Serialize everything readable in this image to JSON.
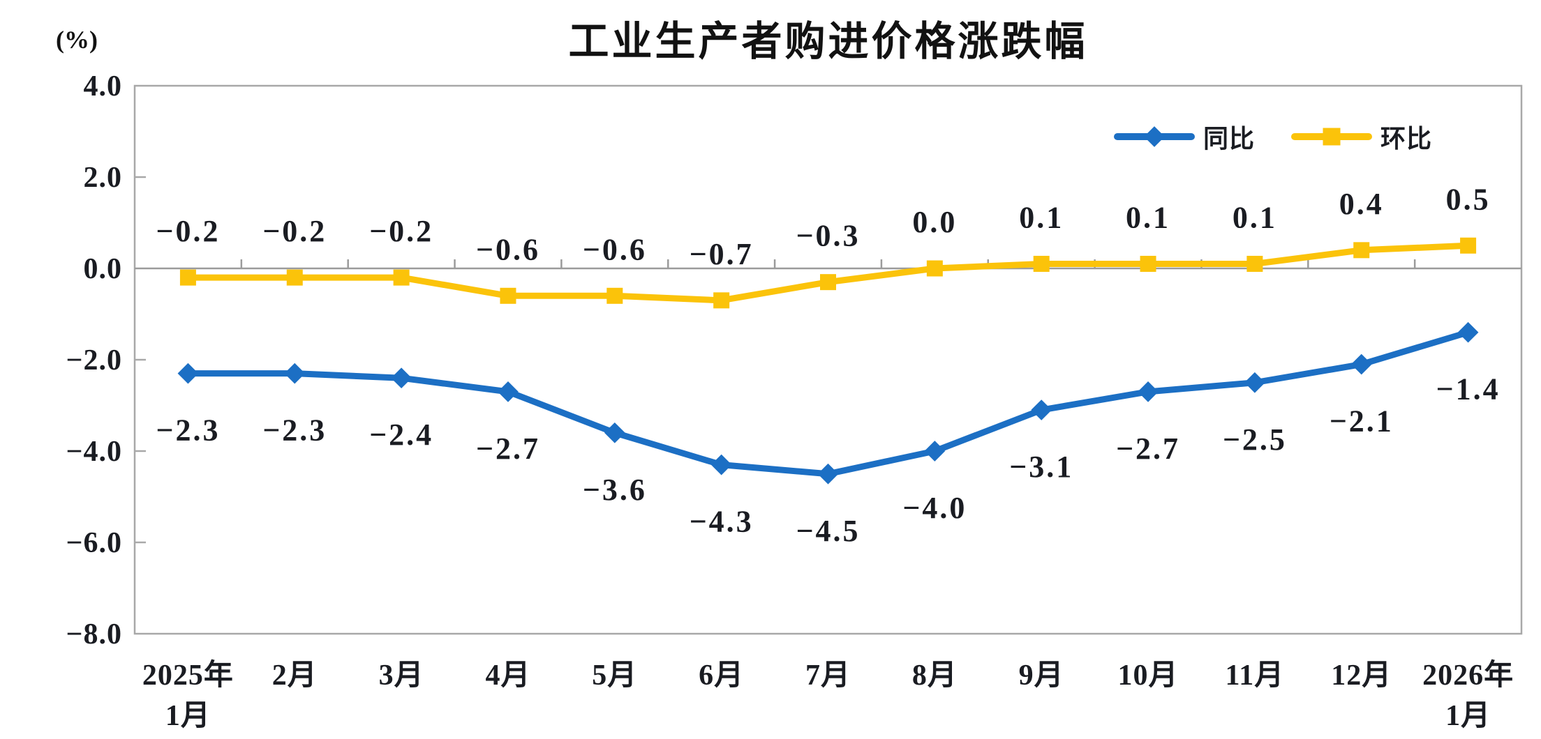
{
  "page": {
    "background": "#ffffff"
  },
  "chart_data": {
    "type": "line",
    "title": "工业生产者购进价格涨跌幅",
    "unit_label": "(%)",
    "categories": [
      "2025年\n1月",
      "2月",
      "3月",
      "4月",
      "5月",
      "6月",
      "7月",
      "8月",
      "9月",
      "10月",
      "11月",
      "12月",
      "2026年\n1月"
    ],
    "y_axis": {
      "min": -8,
      "max": 4,
      "step": 2,
      "tick_labels": [
        "4.0",
        "2.0",
        "0.0",
        "-2.0",
        "-4.0",
        "-6.0",
        "-8.0"
      ]
    },
    "grid": false,
    "legend_position": "top-right",
    "series": [
      {
        "name": "同比",
        "marker": "diamond",
        "color": "#1C6FC4",
        "label_position": "below",
        "values": [
          -2.3,
          -2.3,
          -2.4,
          -2.7,
          -3.6,
          -4.3,
          -4.5,
          -4.0,
          -3.1,
          -2.7,
          -2.5,
          -2.1,
          -1.4
        ]
      },
      {
        "name": "环比",
        "marker": "square",
        "color": "#FBC30A",
        "label_position": "above",
        "values": [
          -0.2,
          -0.2,
          -0.2,
          -0.6,
          -0.6,
          -0.7,
          -0.3,
          0.0,
          0.1,
          0.1,
          0.1,
          0.4,
          0.5
        ]
      }
    ],
    "colors": {
      "axis_line": "#A8A8A8",
      "zero_line": "#9B9B9B",
      "text": "#1A1C22"
    }
  }
}
